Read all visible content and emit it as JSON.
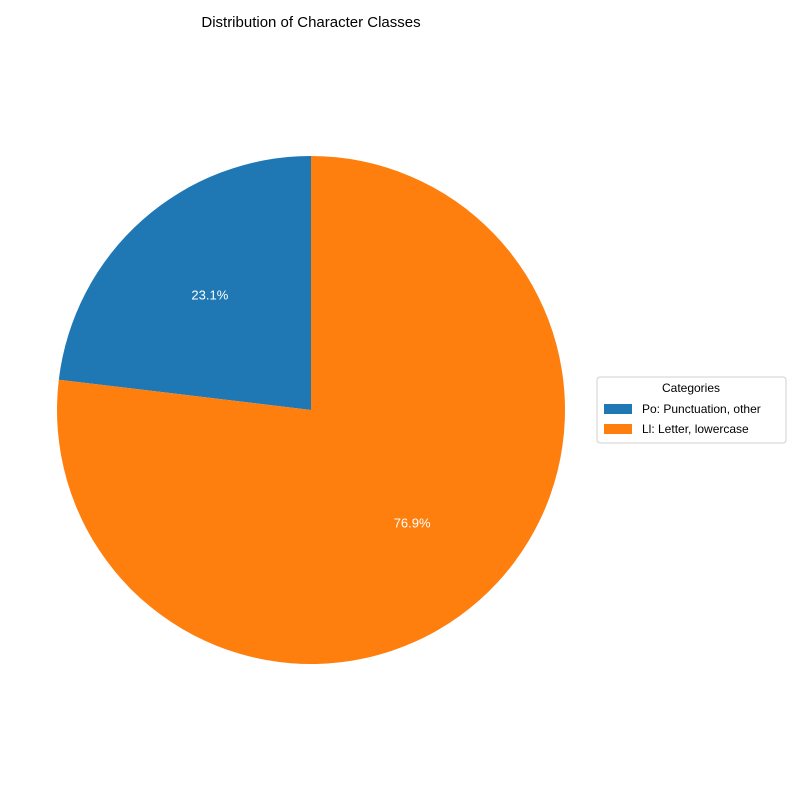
{
  "chart_data": {
    "type": "pie",
    "title": "Distribution of Character Classes",
    "start_angle_deg": 90,
    "counterclock": true,
    "slices": [
      {
        "label": "Po: Punctuation, other",
        "value": 23.1,
        "pct_label": "23.1%",
        "color": "#1f77b4"
      },
      {
        "label": "Ll: Letter, lowercase",
        "value": 76.9,
        "pct_label": "76.9%",
        "color": "#ff7f0e"
      }
    ],
    "legend": {
      "title": "Categories",
      "placement": "center-right"
    }
  }
}
